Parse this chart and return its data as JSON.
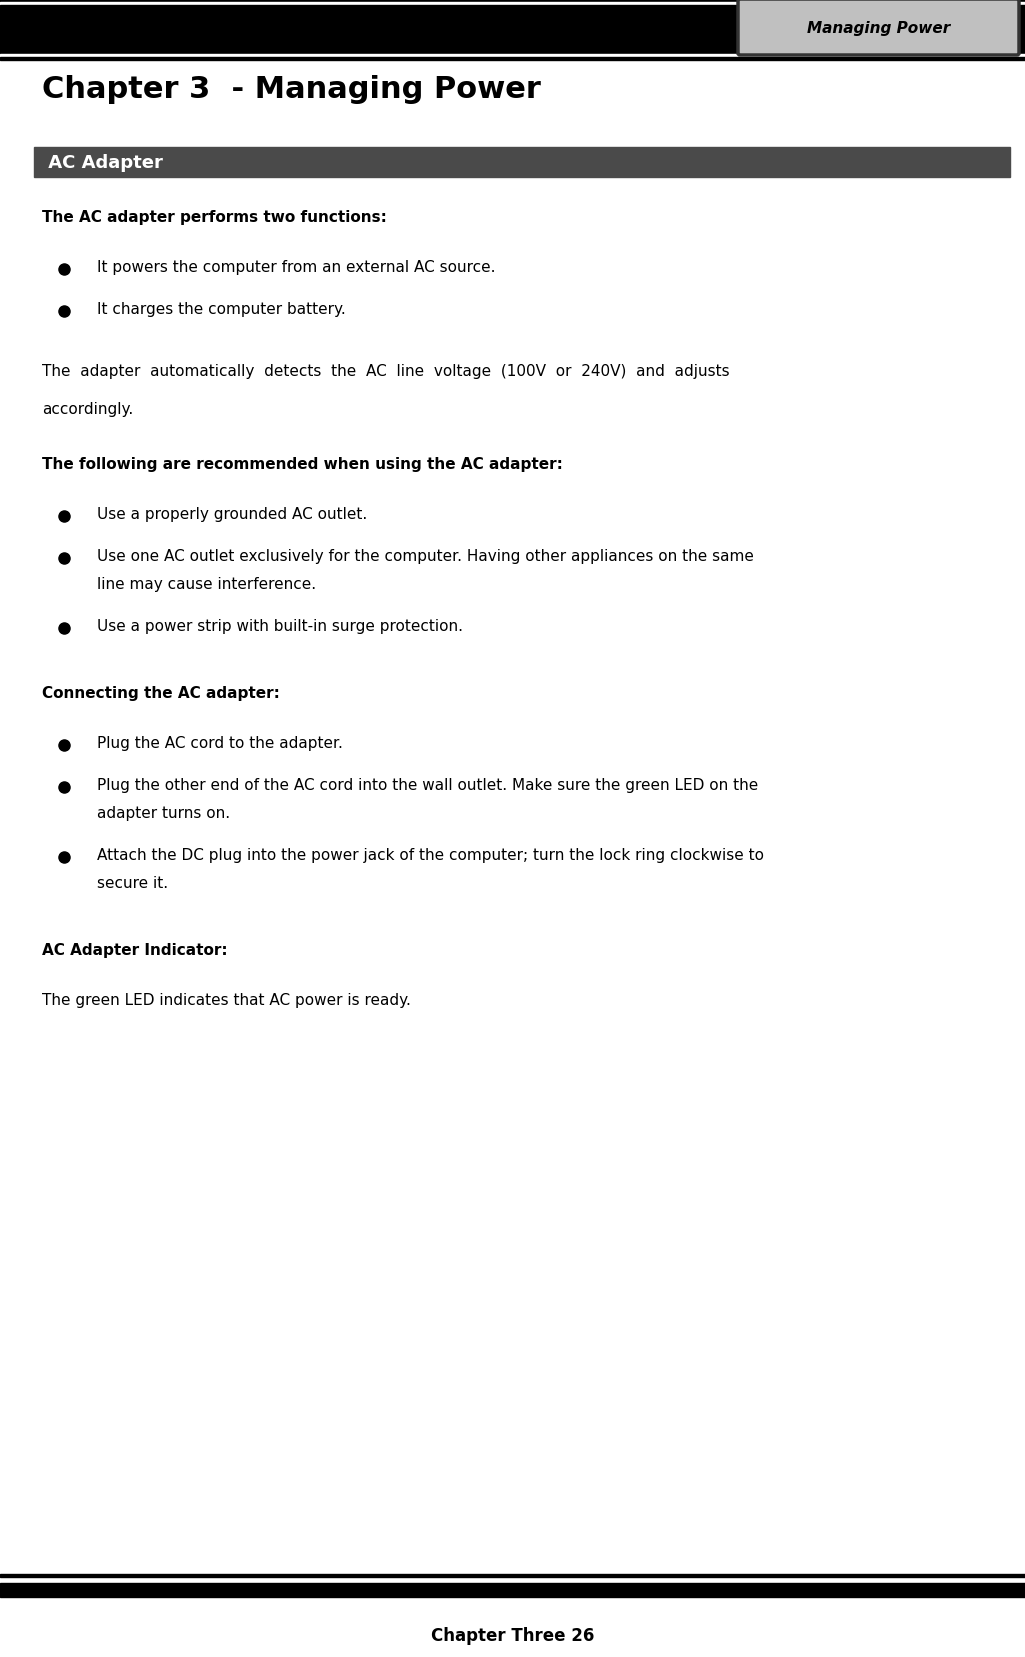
{
  "page_width": 10.25,
  "page_height": 16.58,
  "dpi": 100,
  "bg_color": "#ffffff",
  "header_tab_bg": "#c0c0c0",
  "header_tab_border": "#333333",
  "header_tab_text": "Managing Power",
  "chapter_title": "Chapter 3  - Managing Power",
  "section_header_text": " AC Adapter",
  "section_header_bg": "#4a4a4a",
  "section_header_fg": "#ffffff",
  "intro_bold": "The AC adapter performs two functions:",
  "bullets_intro": [
    "It powers the computer from an external AC source.",
    "It charges the computer battery."
  ],
  "para1_line1": "The  adapter  automatically  detects  the  AC  line  voltage  (100V  or  240V)  and  adjusts",
  "para1_line2": "accordingly.",
  "section2_bold": "The following are recommended when using the AC adapter:",
  "bullets2": [
    [
      "Use a properly grounded AC outlet."
    ],
    [
      "Use one AC outlet exclusively for the computer. Having other appliances on the same",
      "line may cause interference."
    ],
    [
      "Use a power strip with built-in surge protection."
    ]
  ],
  "section3_bold": "Connecting the AC adapter:",
  "bullets3": [
    [
      "Plug the AC cord to the adapter."
    ],
    [
      "Plug the other end of the AC cord into the wall outlet. Make sure the green LED on the",
      "adapter turns on."
    ],
    [
      "Attach the DC plug into the power jack of the computer; turn the lock ring clockwise to",
      "secure it."
    ]
  ],
  "section4_bold": "AC Adapter Indicator:",
  "para4": "The green LED indicates that AC power is ready.",
  "footer_text": "Chapter Three 26",
  "black": "#000000",
  "white": "#ffffff"
}
